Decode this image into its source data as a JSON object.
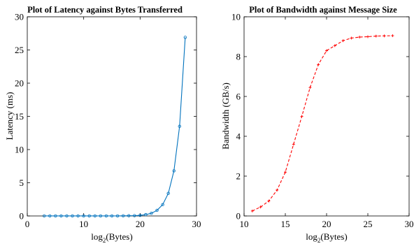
{
  "chart_data": [
    {
      "type": "line",
      "title": "Plot of Latency against Bytes Transferred",
      "xlabel_main": "log",
      "xlabel_sub": "2",
      "xlabel_rest": "(Bytes)",
      "ylabel": "Latency (ms)",
      "xlim": [
        0,
        30
      ],
      "ylim": [
        0,
        30
      ],
      "xticks": [
        0,
        10,
        20,
        30
      ],
      "yticks": [
        0,
        5,
        10,
        15,
        20,
        25,
        30
      ],
      "grid": false,
      "color": "#0072BD",
      "marker": "circle",
      "line_style": "solid",
      "series": [
        {
          "x": [
            3,
            4,
            5,
            6,
            7,
            8,
            9,
            10,
            11,
            12,
            13,
            14,
            15,
            16,
            17,
            18,
            19,
            20,
            21,
            22,
            23,
            24,
            25,
            26,
            27,
            28
          ],
          "y": [
            0.01,
            0.01,
            0.01,
            0.01,
            0.01,
            0.01,
            0.01,
            0.01,
            0.01,
            0.01,
            0.01,
            0.01,
            0.01,
            0.01,
            0.02,
            0.03,
            0.05,
            0.09,
            0.2,
            0.4,
            0.85,
            1.7,
            3.4,
            6.8,
            13.5,
            26.9
          ]
        }
      ]
    },
    {
      "type": "line",
      "title": "Plot of Bandwidth against Message Size",
      "xlabel_main": "log",
      "xlabel_sub": "2",
      "xlabel_rest": "(Bytes)",
      "ylabel": "Bandwidth (GB/s)",
      "xlim": [
        10,
        30
      ],
      "ylim": [
        0,
        10
      ],
      "xticks": [
        10,
        15,
        20,
        25,
        30
      ],
      "yticks": [
        0,
        2,
        4,
        6,
        8,
        10
      ],
      "grid": false,
      "color": "#FF0000",
      "marker": "plus",
      "line_style": "dashed",
      "series": [
        {
          "x": [
            11,
            12,
            13,
            14,
            15,
            16,
            17,
            18,
            19,
            20,
            21,
            22,
            23,
            24,
            25,
            26,
            27,
            28
          ],
          "y": [
            0.25,
            0.45,
            0.75,
            1.3,
            2.2,
            3.6,
            5.0,
            6.45,
            7.6,
            8.3,
            8.55,
            8.8,
            8.93,
            8.98,
            9.0,
            9.03,
            9.04,
            9.05
          ]
        }
      ]
    }
  ]
}
